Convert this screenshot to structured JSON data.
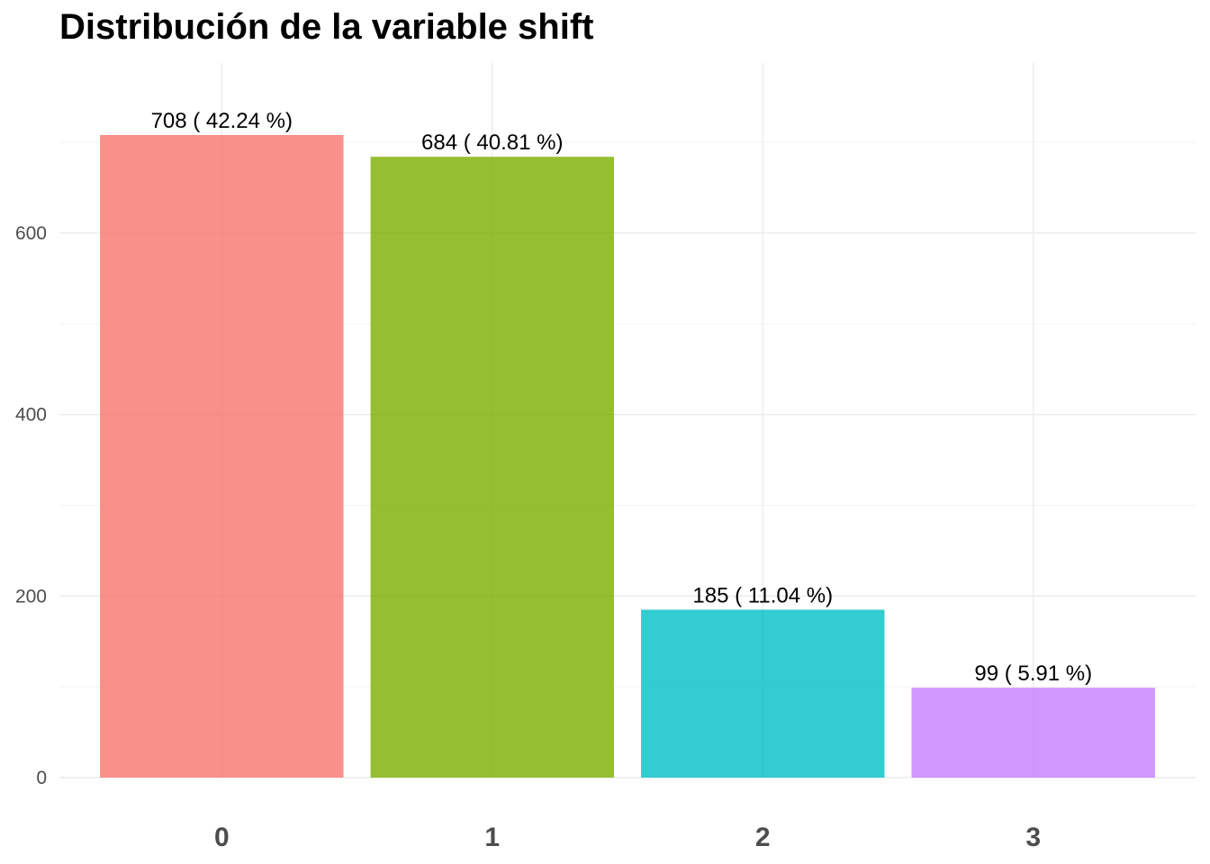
{
  "chart_data": {
    "type": "bar",
    "title": "Distribución de la variable shift",
    "xlabel": "",
    "ylabel": "",
    "categories": [
      "0",
      "1",
      "2",
      "3"
    ],
    "values": [
      708,
      684,
      185,
      99
    ],
    "data_labels": [
      "708  ( 42.24 %)",
      "684  ( 40.81 %)",
      "185  ( 11.04 %)",
      "99  ( 5.91 %)"
    ],
    "colors": [
      "#f8766d",
      "#7cae00",
      "#00bfc4",
      "#c77cff"
    ],
    "bar_opacity": 0.8,
    "ylim": [
      0,
      708
    ],
    "yticks": [
      0,
      200,
      400,
      600
    ],
    "grid": true,
    "legend": "none"
  }
}
